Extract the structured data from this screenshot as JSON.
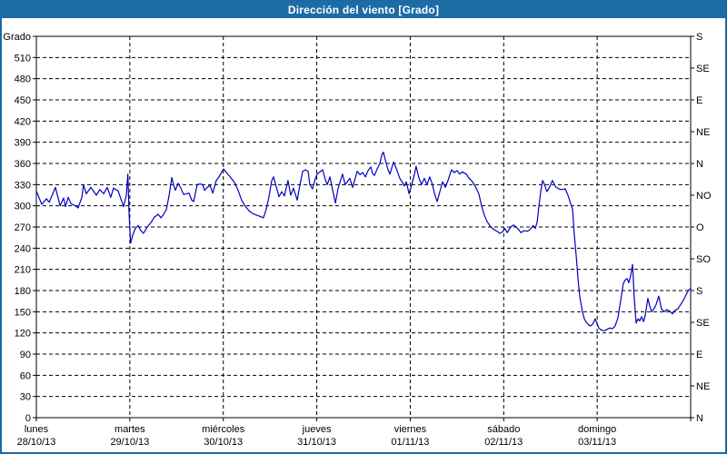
{
  "window": {
    "title": "Dirección del viento [Grado]"
  },
  "colors": {
    "titlebar": "#1e6ca6",
    "border": "#1b6aa5",
    "line": "#0000bf",
    "grid": "#000000",
    "text": "#000000",
    "background": "#ffffff"
  },
  "chart_data": {
    "type": "line",
    "title": "Dirección del viento [Grado]",
    "ylabel_left": "Grado",
    "ylim": [
      0,
      540
    ],
    "y_left_tick_step": 30,
    "y_right_labels": [
      [
        540,
        "S"
      ],
      [
        495,
        "SE"
      ],
      [
        450,
        "E"
      ],
      [
        405,
        "NE"
      ],
      [
        360,
        "N"
      ],
      [
        315,
        "NO"
      ],
      [
        270,
        "O"
      ],
      [
        225,
        "SO"
      ],
      [
        180,
        "S"
      ],
      [
        135,
        "SE"
      ],
      [
        90,
        "E"
      ],
      [
        45,
        "NE"
      ],
      [
        0,
        "N"
      ]
    ],
    "xlim_hours": [
      0,
      168
    ],
    "grid": "dashed",
    "legend_position": "none",
    "x_day_labels": [
      {
        "t": 0,
        "name": "lunes",
        "date": "28/10/13"
      },
      {
        "t": 24,
        "name": "martes",
        "date": "29/10/13"
      },
      {
        "t": 48,
        "name": "miércoles",
        "date": "30/10/13"
      },
      {
        "t": 72,
        "name": "jueves",
        "date": "31/10/13"
      },
      {
        "t": 96,
        "name": "viernes",
        "date": "01/11/13"
      },
      {
        "t": 120,
        "name": "sábado",
        "date": "02/11/13"
      },
      {
        "t": 144,
        "name": "domingo",
        "date": "03/11/13"
      }
    ],
    "series": [
      {
        "name": "Dirección del viento",
        "color": "#0000bf",
        "points": [
          [
            0,
            321
          ],
          [
            1.4,
            302
          ],
          [
            2.6,
            310
          ],
          [
            3.3,
            305
          ],
          [
            4.9,
            326
          ],
          [
            6.1,
            300
          ],
          [
            7,
            311
          ],
          [
            7.5,
            299
          ],
          [
            8.2,
            312
          ],
          [
            8.9,
            303
          ],
          [
            10,
            300
          ],
          [
            10.7,
            297
          ],
          [
            11.7,
            312
          ],
          [
            12.1,
            330
          ],
          [
            12.8,
            317
          ],
          [
            14,
            326
          ],
          [
            14.9,
            319
          ],
          [
            15.4,
            315
          ],
          [
            16.3,
            323
          ],
          [
            17.3,
            317
          ],
          [
            18.2,
            326
          ],
          [
            19.1,
            312
          ],
          [
            19.8,
            325
          ],
          [
            21,
            321
          ],
          [
            21.7,
            310
          ],
          [
            22.4,
            299
          ],
          [
            23.1,
            315
          ],
          [
            23.5,
            345
          ],
          [
            23.8,
            290
          ],
          [
            24.2,
            247
          ],
          [
            24.7,
            258
          ],
          [
            25.4,
            268
          ],
          [
            26.1,
            272
          ],
          [
            26.8,
            265
          ],
          [
            27.5,
            261
          ],
          [
            28.5,
            270
          ],
          [
            29.4,
            276
          ],
          [
            30.3,
            284
          ],
          [
            31.3,
            288
          ],
          [
            32,
            283
          ],
          [
            32.7,
            288
          ],
          [
            33.4,
            295
          ],
          [
            34.1,
            315
          ],
          [
            34.8,
            340
          ],
          [
            35.2,
            330
          ],
          [
            35.7,
            322
          ],
          [
            36.4,
            332
          ],
          [
            37.1,
            325
          ],
          [
            37.8,
            316
          ],
          [
            38.5,
            317
          ],
          [
            39.2,
            318
          ],
          [
            39.9,
            308
          ],
          [
            40.4,
            306
          ],
          [
            41.3,
            330
          ],
          [
            42,
            331
          ],
          [
            42.7,
            330
          ],
          [
            43.2,
            322
          ],
          [
            43.9,
            326
          ],
          [
            44.6,
            329
          ],
          [
            45.3,
            318
          ],
          [
            46.2,
            336
          ],
          [
            46.9,
            341
          ],
          [
            47.6,
            348
          ],
          [
            48.1,
            352
          ],
          [
            49,
            346
          ],
          [
            49.9,
            340
          ],
          [
            50.9,
            333
          ],
          [
            51.8,
            322
          ],
          [
            52.7,
            308
          ],
          [
            53.7,
            299
          ],
          [
            54.6,
            293
          ],
          [
            55.5,
            289
          ],
          [
            56.5,
            287
          ],
          [
            57.4,
            285
          ],
          [
            58.3,
            283
          ],
          [
            59,
            295
          ],
          [
            59.7,
            312
          ],
          [
            60.4,
            335
          ],
          [
            60.9,
            341
          ],
          [
            61.4,
            331
          ],
          [
            62.3,
            313
          ],
          [
            63,
            320
          ],
          [
            63.7,
            314
          ],
          [
            64.6,
            336
          ],
          [
            65.3,
            315
          ],
          [
            66,
            325
          ],
          [
            67,
            308
          ],
          [
            67.7,
            330
          ],
          [
            68.4,
            349
          ],
          [
            69.1,
            351
          ],
          [
            69.8,
            349
          ],
          [
            70.2,
            330
          ],
          [
            70.9,
            324
          ],
          [
            71.6,
            338
          ],
          [
            72.1,
            345
          ],
          [
            72.8,
            348
          ],
          [
            73.5,
            351
          ],
          [
            74.2,
            337
          ],
          [
            74.7,
            330
          ],
          [
            75.4,
            341
          ],
          [
            76.1,
            322
          ],
          [
            76.8,
            304
          ],
          [
            77.5,
            325
          ],
          [
            78.6,
            345
          ],
          [
            79.3,
            330
          ],
          [
            80.5,
            339
          ],
          [
            81.2,
            326
          ],
          [
            82.4,
            349
          ],
          [
            83.1,
            344
          ],
          [
            83.8,
            347
          ],
          [
            84.5,
            341
          ],
          [
            85.2,
            350
          ],
          [
            85.9,
            355
          ],
          [
            86.3,
            346
          ],
          [
            86.8,
            343
          ],
          [
            87.5,
            352
          ],
          [
            88.2,
            360
          ],
          [
            88.7,
            372
          ],
          [
            89.1,
            376
          ],
          [
            89.6,
            365
          ],
          [
            90.3,
            351
          ],
          [
            90.8,
            345
          ],
          [
            91.7,
            362
          ],
          [
            92.4,
            353
          ],
          [
            93.3,
            339
          ],
          [
            94,
            333
          ],
          [
            94.5,
            328
          ],
          [
            95,
            334
          ],
          [
            95.7,
            317
          ],
          [
            96.4,
            330
          ],
          [
            97.1,
            345
          ],
          [
            97.5,
            356
          ],
          [
            98.2,
            340
          ],
          [
            98.9,
            330
          ],
          [
            99.6,
            339
          ],
          [
            100.3,
            330
          ],
          [
            101,
            341
          ],
          [
            101.7,
            330
          ],
          [
            102.2,
            318
          ],
          [
            102.9,
            306
          ],
          [
            103.6,
            320
          ],
          [
            104.3,
            334
          ],
          [
            105,
            326
          ],
          [
            105.7,
            336
          ],
          [
            106.6,
            351
          ],
          [
            107.3,
            347
          ],
          [
            108,
            350
          ],
          [
            108.7,
            345
          ],
          [
            109.4,
            348
          ],
          [
            110.4,
            345
          ],
          [
            111.1,
            339
          ],
          [
            112,
            334
          ],
          [
            112.9,
            325
          ],
          [
            113.6,
            317
          ],
          [
            114.3,
            300
          ],
          [
            115,
            287
          ],
          [
            115.7,
            278
          ],
          [
            116.7,
            270
          ],
          [
            117.6,
            266
          ],
          [
            118.3,
            264
          ],
          [
            119,
            261
          ],
          [
            119.7,
            263
          ],
          [
            120.3,
            268
          ],
          [
            120.9,
            262
          ],
          [
            121.8,
            270
          ],
          [
            122.5,
            273
          ],
          [
            123.2,
            270
          ],
          [
            123.9,
            266
          ],
          [
            124.4,
            262
          ],
          [
            125.3,
            265
          ],
          [
            126,
            264
          ],
          [
            126.7,
            266
          ],
          [
            127.6,
            272
          ],
          [
            128.1,
            268
          ],
          [
            128.6,
            277
          ],
          [
            129,
            298
          ],
          [
            129.5,
            320
          ],
          [
            130,
            336
          ],
          [
            130.4,
            331
          ],
          [
            131.1,
            320
          ],
          [
            131.8,
            327
          ],
          [
            132.5,
            336
          ],
          [
            133,
            330
          ],
          [
            133.5,
            326
          ],
          [
            134.2,
            324
          ],
          [
            134.9,
            323
          ],
          [
            135.8,
            324
          ],
          [
            136.5,
            315
          ],
          [
            137.2,
            303
          ],
          [
            137.7,
            295
          ],
          [
            138.1,
            260
          ],
          [
            138.6,
            230
          ],
          [
            139.1,
            196
          ],
          [
            139.5,
            172
          ],
          [
            140.2,
            150
          ],
          [
            140.7,
            140
          ],
          [
            141.2,
            135
          ],
          [
            141.9,
            131
          ],
          [
            142.3,
            130
          ],
          [
            142.8,
            132
          ],
          [
            143.5,
            140
          ],
          [
            144,
            133
          ],
          [
            144.4,
            127
          ],
          [
            145.1,
            124
          ],
          [
            145.8,
            123
          ],
          [
            146.5,
            125
          ],
          [
            147.2,
            127
          ],
          [
            147.9,
            126
          ],
          [
            148.6,
            130
          ],
          [
            149.3,
            141
          ],
          [
            150,
            165
          ],
          [
            150.7,
            190
          ],
          [
            151.2,
            195
          ],
          [
            151.7,
            197
          ],
          [
            152.1,
            191
          ],
          [
            152.6,
            201
          ],
          [
            153.1,
            217
          ],
          [
            153.5,
            170
          ],
          [
            154,
            134
          ],
          [
            154.5,
            140
          ],
          [
            154.9,
            137
          ],
          [
            155.4,
            143
          ],
          [
            155.9,
            136
          ],
          [
            156.3,
            144
          ],
          [
            157,
            169
          ],
          [
            157.5,
            158
          ],
          [
            158,
            150
          ],
          [
            158.7,
            155
          ],
          [
            159.1,
            160
          ],
          [
            159.8,
            172
          ],
          [
            160.5,
            154
          ],
          [
            161.2,
            150
          ],
          [
            161.9,
            153
          ],
          [
            162.6,
            151
          ],
          [
            163.3,
            147
          ],
          [
            164,
            152
          ],
          [
            164.7,
            154
          ],
          [
            165.4,
            160
          ],
          [
            166.1,
            166
          ],
          [
            166.8,
            174
          ],
          [
            167.5,
            181
          ],
          [
            168,
            183
          ]
        ]
      }
    ]
  }
}
